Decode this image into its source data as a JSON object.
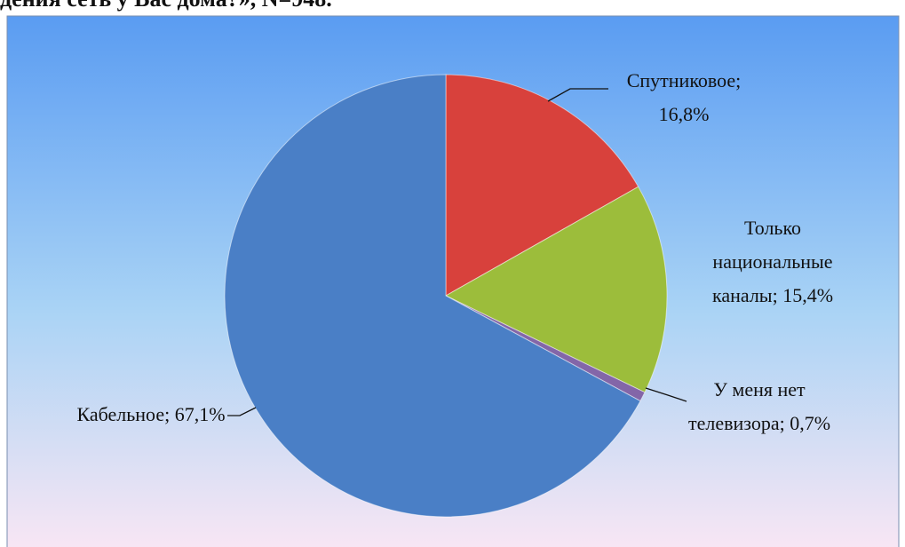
{
  "chart_data": {
    "type": "pie",
    "title": "дения сеть у Вас дома?», N=948.",
    "categories": [
      "Спутниковое;",
      "Только национальные каналы;",
      "У меня нет телевизора;",
      "Кабельное;"
    ],
    "values": [
      16.8,
      15.4,
      0.7,
      67.1
    ],
    "value_labels": [
      "16,8%",
      "15,4%",
      "0,7%",
      "67,1%"
    ],
    "colors": [
      "#d8413c",
      "#9cbd3b",
      "#8366a8",
      "#4a7fc6"
    ]
  }
}
